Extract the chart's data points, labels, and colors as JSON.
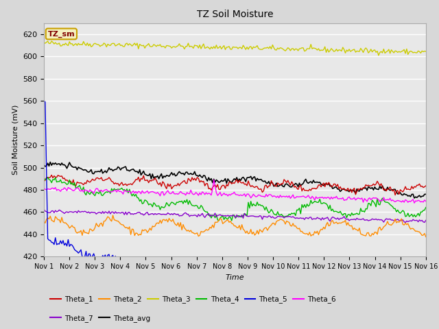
{
  "title": "TZ Soil Moisture",
  "xlabel": "Time",
  "ylabel": "Soil Moisture (mV)",
  "ylim": [
    420,
    630
  ],
  "xlim": [
    0,
    15
  ],
  "xtick_labels": [
    "Nov 1",
    "Nov 2",
    "Nov 3",
    "Nov 4",
    "Nov 5",
    "Nov 6",
    "Nov 7",
    "Nov 8",
    "Nov 9",
    "Nov 10",
    "Nov 11",
    "Nov 12",
    "Nov 13",
    "Nov 14",
    "Nov 15",
    "Nov 16"
  ],
  "bg_color": "#e8e8e8",
  "fig_color": "#d8d8d8",
  "legend_box_facecolor": "#f5f0c0",
  "legend_box_edgecolor": "#c8a000",
  "legend_box_textcolor": "#800000",
  "series_colors": {
    "Theta_1": "#cc0000",
    "Theta_2": "#ff8c00",
    "Theta_3": "#cccc00",
    "Theta_4": "#00bb00",
    "Theta_5": "#0000dd",
    "Theta_6": "#ff00ff",
    "Theta_7": "#8800cc",
    "Theta_avg": "#000000"
  },
  "n_points": 300
}
